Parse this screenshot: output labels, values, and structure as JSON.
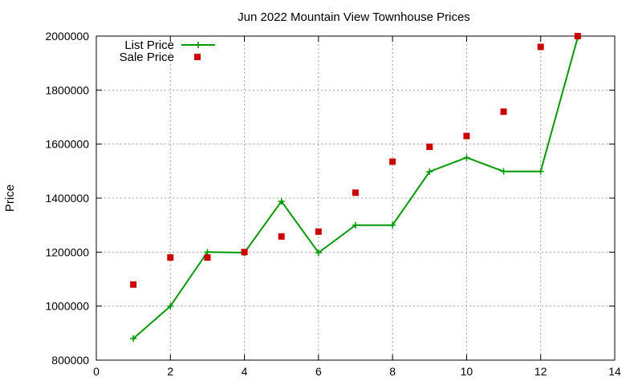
{
  "chart_data": {
    "type": "line",
    "title": "Jun 2022 Mountain View Townhouse Prices",
    "xlabel": "",
    "ylabel": "Price",
    "xlim": [
      0,
      14
    ],
    "ylim": [
      800000,
      2000000
    ],
    "x_ticks": [
      "0",
      "2",
      "4",
      "6",
      "8",
      "10",
      "12",
      "14"
    ],
    "y_ticks": [
      "800000",
      "1000000",
      "1200000",
      "1400000",
      "1600000",
      "1800000",
      "2000000"
    ],
    "grid": true,
    "legend_position": "top-left",
    "series": [
      {
        "name": "List Price",
        "style": "line-points",
        "color": "#009900",
        "x": [
          1,
          2,
          3,
          4,
          5,
          6,
          7,
          8,
          9,
          10,
          11,
          12,
          13
        ],
        "values": [
          880000,
          1000000,
          1200000,
          1198000,
          1388000,
          1198000,
          1300000,
          1300000,
          1498000,
          1550000,
          1499000,
          1499000,
          1995000
        ]
      },
      {
        "name": "Sale Price",
        "style": "points",
        "color": "#cc0000",
        "x": [
          1,
          2,
          3,
          4,
          5,
          6,
          7,
          8,
          9,
          10,
          11,
          12,
          13
        ],
        "values": [
          1080000,
          1180000,
          1180000,
          1200000,
          1258000,
          1276000,
          1420000,
          1535000,
          1590000,
          1630000,
          1720000,
          1960000,
          2000000
        ]
      }
    ]
  }
}
